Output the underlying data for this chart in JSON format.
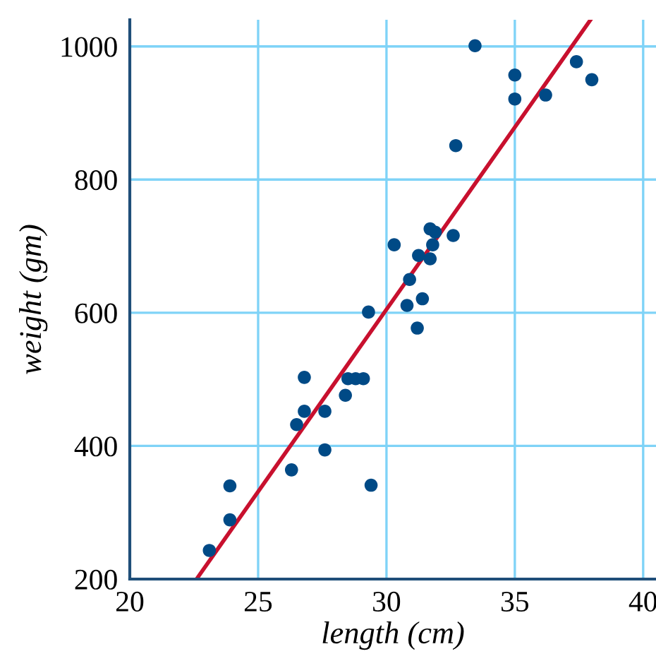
{
  "chart_data": {
    "type": "scatter",
    "xlabel": "length (cm)",
    "ylabel": "weight (gm)",
    "xlim": [
      20,
      40.5
    ],
    "ylim": [
      200,
      1040
    ],
    "xticks": [
      20,
      25,
      30,
      35,
      40
    ],
    "yticks": [
      200,
      400,
      600,
      800,
      1000
    ],
    "grid": true,
    "series": [
      {
        "marker": "circle",
        "color": "#004a86",
        "x": [
          23.1,
          23.9,
          23.9,
          26.3,
          26.8,
          26.5,
          26.8,
          27.6,
          27.6,
          28.4,
          28.5,
          28.8,
          29.1,
          29.3,
          29.4,
          30.3,
          30.9,
          30.8,
          31.4,
          31.2,
          31.25,
          31.7,
          31.9,
          31.8,
          31.7,
          32.6,
          32.7,
          33.45,
          35.0,
          35.0,
          36.2,
          37.4,
          38.0
        ],
        "values": [
          243,
          289,
          340,
          364,
          503,
          432,
          452,
          452,
          394,
          476,
          501,
          501,
          501,
          601,
          341,
          702,
          650,
          611,
          621,
          577,
          686,
          726,
          721,
          702,
          681,
          716,
          851,
          1001,
          957,
          921,
          927,
          977,
          950
        ]
      },
      {
        "type": "line",
        "marker": "none",
        "color": "#c8102e",
        "x": [
          22.6,
          37.95
        ],
        "values": [
          200,
          1040
        ]
      }
    ]
  }
}
